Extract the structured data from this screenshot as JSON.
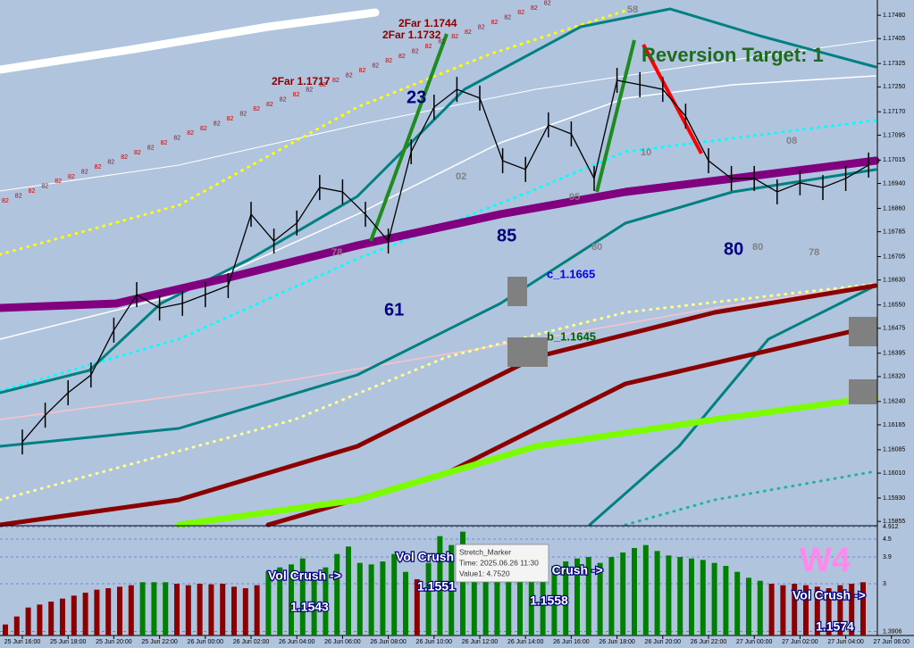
{
  "chart_data": [
    {
      "type": "line",
      "categories": [
        "25 Jun 16:00",
        null,
        "25 Jun 18:00",
        null,
        "25 Jun 20:00",
        null,
        "25 Jun 22:00",
        null,
        "26 Jun 00:00",
        null,
        "26 Jun 02:00",
        null,
        "26 Jun 04:00",
        null,
        "26 Jun 06:00",
        null,
        "26 Jun 08:00",
        null,
        "26 Jun 10:00",
        null,
        "26 Jun 12:00",
        null,
        "26 Jun 14:00",
        null,
        "26 Jun 16:00",
        null,
        "26 Jun 18:00",
        null,
        "26 Jun 20:00",
        null,
        "26 Jun 22:00",
        null,
        "27 Jun 00:00",
        null,
        "27 Jun 02:00",
        null,
        "27 Jun 04:00",
        null,
        "27 Jun 06:00"
      ],
      "series": [
        {
          "color": "#000000",
          "values": [
            1.1611,
            1.16196,
            1.16268,
            1.16325,
            1.16469,
            1.16583,
            1.1654,
            1.16555,
            1.16583,
            1.16612,
            1.16841,
            1.16755,
            1.16813,
            1.16927,
            1.16913,
            1.16841,
            1.16755,
            1.17042,
            1.17185,
            1.17242,
            1.17214,
            1.17013,
            1.16985,
            1.17128,
            1.17099,
            1.16956,
            1.17271,
            1.17257,
            1.17242,
            1.17156,
            1.17013,
            1.16956,
            1.16956,
            1.16913,
            1.16942,
            1.16927,
            1.16956,
            1.16999,
            null
          ]
        }
      ],
      "ylim": [
        1.15844,
        1.17529
      ],
      "yticks": [
        {
          "value": 1.1748,
          "label": "1.17480"
        },
        {
          "value": 1.17405,
          "label": "1.17405"
        },
        {
          "value": 1.17325,
          "label": "1.17325"
        },
        {
          "value": 1.1725,
          "label": "1.17250"
        },
        {
          "value": 1.1717,
          "label": "1.17170"
        },
        {
          "value": 1.17095,
          "label": "1.17095"
        },
        {
          "value": 1.17015,
          "label": "1.17015"
        },
        {
          "value": 1.1694,
          "label": "1.16940"
        },
        {
          "value": 1.1686,
          "label": "1.16860"
        },
        {
          "value": 1.16785,
          "label": "1.16785"
        },
        {
          "value": 1.16705,
          "label": "1.16705"
        },
        {
          "value": 1.1663,
          "label": "1.16630"
        },
        {
          "value": 1.1655,
          "label": "1.16550"
        },
        {
          "value": 1.16475,
          "label": "1.16475"
        },
        {
          "value": 1.16395,
          "label": "1.16395"
        },
        {
          "value": 1.1632,
          "label": "1.16320"
        },
        {
          "value": 1.1624,
          "label": "1.16240"
        },
        {
          "value": 1.16165,
          "label": "1.16165"
        },
        {
          "value": 1.16085,
          "label": "1.16085"
        },
        {
          "value": 1.1601,
          "label": "1.16010"
        },
        {
          "value": 1.1593,
          "label": "1.15930"
        },
        {
          "value": 1.15855,
          "label": "1.15855"
        }
      ],
      "trail_label": "82",
      "annotations": [
        "2Far 1.1744",
        "2Far 1.1732",
        "2Far 1.1717",
        "23",
        "61",
        "85",
        "80",
        "78",
        "02",
        "95",
        "80",
        "10",
        "80",
        "78",
        "08",
        "58",
        "c_1.1665",
        "b_1.1645",
        "Reversion Target: 1"
      ]
    },
    {
      "type": "bar",
      "values": [
        1.63,
        1.9,
        2.2,
        2.3,
        2.4,
        2.5,
        2.6,
        2.7,
        2.8,
        2.85,
        2.9,
        2.95,
        3.05,
        3.05,
        3.05,
        3.0,
        2.95,
        3.0,
        2.98,
        3.0,
        2.9,
        2.85,
        2.95,
        3.42,
        3.55,
        3.65,
        3.85,
        3.4,
        3.55,
        4.0,
        4.25,
        3.7,
        3.65,
        3.75,
        4.0,
        3.4,
        3.15,
        3.7,
        4.6,
        4.3,
        4.75,
        4.0,
        3.7,
        3.85,
        3.8,
        3.7,
        3.6,
        3.4,
        3.6,
        3.75,
        3.85,
        3.9,
        3.7,
        3.9,
        4.05,
        4.2,
        4.3,
        4.1,
        3.95,
        3.9,
        3.85,
        3.8,
        3.7,
        3.6,
        3.4,
        3.2,
        3.1,
        3.0,
        2.95,
        3.0,
        2.95,
        2.9,
        2.85,
        2.95,
        3.0,
        3.05
      ],
      "colors": [
        "#8b0000",
        "#8b0000",
        "#8b0000",
        "#8b0000",
        "#8b0000",
        "#8b0000",
        "#8b0000",
        "#8b0000",
        "#8b0000",
        "#8b0000",
        "#8b0000",
        "#8b0000",
        "#008000",
        "#008000",
        "#008000",
        "#8b0000",
        "#8b0000",
        "#8b0000",
        "#8b0000",
        "#8b0000",
        "#8b0000",
        "#8b0000",
        "#8b0000",
        "#008000",
        "#008000",
        "#008000",
        "#008000",
        "#008000",
        "#008000",
        "#008000",
        "#008000",
        "#008000",
        "#008000",
        "#008000",
        "#008000",
        "#008000",
        "#8b0000",
        "#008000",
        "#008000",
        "#008000",
        "#008000",
        "#008000",
        "#008000",
        "#008000",
        "#008000",
        "#008000",
        "#008000",
        "#008000",
        "#008000",
        "#008000",
        "#008000",
        "#008000",
        "#008000",
        "#008000",
        "#008000",
        "#008000",
        "#008000",
        "#008000",
        "#008000",
        "#008000",
        "#008000",
        "#008000",
        "#008000",
        "#008000",
        "#008000",
        "#008000",
        "#008000",
        "#8b0000",
        "#8b0000",
        "#8b0000",
        "#8b0000",
        "#8b0000",
        "#8b0000",
        "#8b0000",
        "#8b0000",
        "#8b0000"
      ],
      "ylim": [
        1.26,
        4.92
      ],
      "yticks": [
        4.912,
        4.5,
        3.9,
        3,
        1.3906
      ],
      "annotations": [
        "Vol Crush ->",
        "1.1543",
        "Vol Crush ->",
        "1.1551",
        "Vol Crush ->",
        "1.1558",
        "Vol Crush ->",
        "1.1574",
        "W4"
      ],
      "tooltip": {
        "title": "Stretch_Marker",
        "time": "Time: 2025.06.26 11:30",
        "value": "Value1: 4.7520"
      }
    }
  ]
}
